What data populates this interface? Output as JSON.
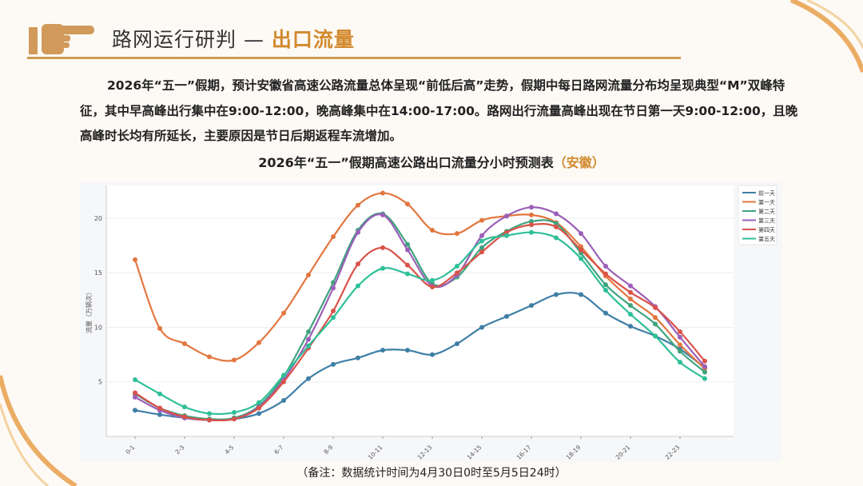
{
  "header": {
    "title_main": "路网运行研判 — ",
    "title_accent": "出口流量",
    "accent_color": "#d28a2e"
  },
  "paragraph": "2026年“五一”假期，预计安徽省高速公路流量总体呈现“前低后高”走势，假期中每日路网流量分布均呈现典型“M”双峰特征，其中早高峰出行集中在9:00-12:00，晚高峰集中在14:00-17:00。路网出行流量高峰出现在节日第一天9:00-12:00，且晚高峰时长均有所延长，主要原因是节日后期返程车流增加。",
  "table_title": {
    "main": "2026年“五一”假期高速公路出口流量分小时预测表",
    "accent": "（安徽）"
  },
  "footnote": "（备注：数据统计时间为4月30日0时至5月5日24时）",
  "chart_data": {
    "type": "line",
    "smooth": true,
    "markers": true,
    "ylabel": "流量（万辆次）",
    "xlabel": "",
    "ylim": [
      0,
      23
    ],
    "yticks": [
      5,
      10,
      15,
      20
    ],
    "grid": "horizontal",
    "legend_position": "top-right",
    "categories": [
      "0-1",
      "1-2",
      "2-3",
      "3-4",
      "4-5",
      "5-6",
      "6-7",
      "7-8",
      "8-9",
      "9-10",
      "10-11",
      "11-12",
      "12-13",
      "13-14",
      "14-15",
      "15-16",
      "16-17",
      "17-18",
      "18-19",
      "19-20",
      "20-21",
      "21-22",
      "22-23",
      "23-24"
    ],
    "xtick_labels": [
      "0-1",
      "2-3",
      "4-5",
      "6-7",
      "8-9",
      "10-11",
      "12-13",
      "14-15",
      "16-17",
      "18-19",
      "20-21",
      "22-23"
    ],
    "series": [
      {
        "name": "前一天",
        "color": "#3f7fa6",
        "values": [
          2.4,
          2.0,
          1.7,
          1.5,
          1.6,
          2.1,
          3.3,
          5.3,
          6.6,
          7.2,
          7.9,
          7.9,
          7.5,
          8.5,
          10.0,
          11.0,
          12.0,
          13.0,
          13.0,
          11.3,
          10.1,
          9.2,
          8.0,
          6.3
        ]
      },
      {
        "name": "第一天",
        "color": "#e2763f",
        "values": [
          16.2,
          9.9,
          8.5,
          7.3,
          7.0,
          8.6,
          11.3,
          14.8,
          18.3,
          21.2,
          22.3,
          21.3,
          18.9,
          18.6,
          19.8,
          20.2,
          20.3,
          19.6,
          17.4,
          14.7,
          12.6,
          10.9,
          8.4,
          6.2
        ]
      },
      {
        "name": "第二天",
        "color": "#3fa37e",
        "values": [
          3.9,
          2.6,
          1.9,
          1.6,
          1.7,
          2.8,
          5.5,
          9.6,
          14.1,
          18.9,
          20.4,
          17.6,
          14.0,
          14.6,
          17.3,
          18.8,
          19.7,
          19.5,
          16.8,
          13.9,
          12.0,
          10.3,
          7.8,
          5.9
        ]
      },
      {
        "name": "第三天",
        "color": "#9b5fb8",
        "values": [
          3.6,
          2.4,
          1.7,
          1.5,
          1.6,
          2.7,
          5.2,
          8.9,
          13.6,
          18.7,
          20.3,
          17.1,
          13.8,
          14.8,
          18.4,
          20.2,
          21.0,
          20.4,
          18.6,
          15.6,
          13.8,
          11.9,
          9.1,
          6.4
        ]
      },
      {
        "name": "第四天",
        "color": "#d9534a",
        "values": [
          4.0,
          2.6,
          1.8,
          1.5,
          1.6,
          2.6,
          5.0,
          8.1,
          11.5,
          15.8,
          17.3,
          15.7,
          13.7,
          15.0,
          16.9,
          18.7,
          19.4,
          19.2,
          17.1,
          14.9,
          13.2,
          11.8,
          9.6,
          6.9
        ]
      },
      {
        "name": "第五天",
        "color": "#2fbf98",
        "values": [
          5.2,
          3.9,
          2.7,
          2.1,
          2.2,
          3.1,
          5.6,
          8.3,
          10.9,
          13.8,
          15.4,
          14.9,
          14.3,
          15.6,
          17.9,
          18.4,
          18.7,
          18.2,
          16.3,
          13.4,
          11.2,
          9.2,
          6.8,
          5.3
        ]
      }
    ]
  }
}
